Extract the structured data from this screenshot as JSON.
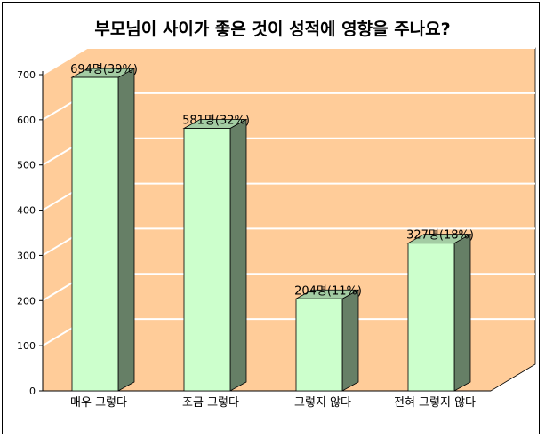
{
  "chart_data": {
    "type": "bar",
    "title": "부모님이 사이가 좋은 것이 성적에 영향을 주나요?",
    "categories": [
      "매우 그렇다",
      "조금 그렇다",
      "그렇지 않다",
      "전혀 그렇지 않다"
    ],
    "values": [
      694,
      581,
      204,
      327
    ],
    "data_labels": [
      "694명(39%)",
      "581명(32%)",
      "204명(11%)",
      "327명(18%)"
    ],
    "ylim": [
      0,
      700
    ],
    "yticks": [
      0,
      100,
      200,
      300,
      400,
      500,
      600,
      700
    ],
    "grid": true,
    "colors": {
      "wall": "#FFCC99",
      "bar_front": "#CCFFCC",
      "bar_top": "#A3CCA3",
      "bar_side": "#667F66",
      "grid": "#FFFFFF"
    }
  }
}
